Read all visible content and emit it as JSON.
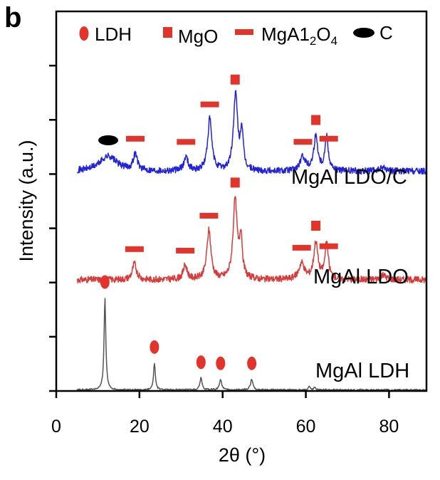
{
  "chart_data": {
    "type": "line",
    "panel_label": "b",
    "xlabel": "2θ (°)",
    "ylabel": "Intensity (a.u.)",
    "xlim": [
      0,
      89
    ],
    "x_ticks": [
      0,
      20,
      40,
      60,
      80
    ],
    "y_tick_count": 7,
    "y_tick_labels": false,
    "legend": {
      "placement": "top",
      "items": [
        {
          "marker": "ldh",
          "label": "LDH",
          "color": "#e2342b"
        },
        {
          "marker": "mgo",
          "label": "MgO",
          "color": "#e2342b"
        },
        {
          "marker": "spinel",
          "label": "MgA1₂O₄",
          "color": "#e2342b",
          "label_base": "MgA1",
          "label_sub1": "2",
          "label_mid": "O",
          "label_sub2": "4"
        },
        {
          "marker": "carbon",
          "label": "C",
          "color": "#000000"
        }
      ]
    },
    "series": [
      {
        "name": "MgAl LDO/C",
        "color": "#2222dd",
        "baseline": 4.05,
        "noise": 0.06,
        "peaks": [
          {
            "x": 12.5,
            "h": 0.28,
            "w": 2.5
          },
          {
            "x": 19.0,
            "h": 0.3,
            "w": 0.6
          },
          {
            "x": 31.2,
            "h": 0.26,
            "w": 0.6
          },
          {
            "x": 36.9,
            "h": 0.95,
            "w": 0.6
          },
          {
            "x": 43.1,
            "h": 1.4,
            "w": 0.6
          },
          {
            "x": 44.6,
            "h": 0.7,
            "w": 0.4
          },
          {
            "x": 59.3,
            "h": 0.25,
            "w": 0.8
          },
          {
            "x": 62.4,
            "h": 0.63,
            "w": 0.6
          },
          {
            "x": 65.0,
            "h": 0.62,
            "w": 0.5
          },
          {
            "x": 78.6,
            "h": 0.07,
            "w": 0.9
          }
        ],
        "markers": [
          {
            "type": "carbon",
            "x": 12.5
          },
          {
            "type": "spinel",
            "x": 19.0
          },
          {
            "type": "spinel",
            "x": 31.2
          },
          {
            "type": "spinel",
            "x": 36.9
          },
          {
            "type": "mgo",
            "x": 43.0
          },
          {
            "type": "spinel",
            "x": 59.3
          },
          {
            "type": "mgo",
            "x": 62.4
          },
          {
            "type": "spinel",
            "x": 65.5
          }
        ]
      },
      {
        "name": "MgAl LDO",
        "color": "#d93a3a",
        "baseline": 2.05,
        "noise": 0.06,
        "peaks": [
          {
            "x": 18.8,
            "h": 0.3,
            "w": 0.6
          },
          {
            "x": 31.0,
            "h": 0.26,
            "w": 0.6
          },
          {
            "x": 36.7,
            "h": 0.9,
            "w": 0.6
          },
          {
            "x": 43.0,
            "h": 1.45,
            "w": 0.6
          },
          {
            "x": 44.4,
            "h": 0.75,
            "w": 0.4
          },
          {
            "x": 59.0,
            "h": 0.3,
            "w": 0.8
          },
          {
            "x": 62.4,
            "h": 0.68,
            "w": 0.6
          },
          {
            "x": 65.0,
            "h": 0.65,
            "w": 0.5
          },
          {
            "x": 78.6,
            "h": 0.08,
            "w": 0.9
          }
        ],
        "markers": [
          {
            "type": "spinel",
            "x": 18.8
          },
          {
            "type": "spinel",
            "x": 31.0
          },
          {
            "type": "spinel",
            "x": 36.7
          },
          {
            "type": "mgo",
            "x": 43.0
          },
          {
            "type": "spinel",
            "x": 59.0
          },
          {
            "type": "mgo",
            "x": 62.4
          },
          {
            "type": "spinel",
            "x": 65.5
          }
        ]
      },
      {
        "name": "MgAl LDH",
        "color": "#555555",
        "baseline": 0.02,
        "noise": 0.015,
        "peaks": [
          {
            "x": 11.7,
            "h": 1.7,
            "w": 0.25
          },
          {
            "x": 23.6,
            "h": 0.5,
            "w": 0.25
          },
          {
            "x": 34.8,
            "h": 0.22,
            "w": 0.3
          },
          {
            "x": 39.5,
            "h": 0.2,
            "w": 0.3
          },
          {
            "x": 47.0,
            "h": 0.2,
            "w": 0.35
          },
          {
            "x": 60.8,
            "h": 0.06,
            "w": 0.3
          },
          {
            "x": 62.2,
            "h": 0.05,
            "w": 0.3
          }
        ],
        "markers": [
          {
            "type": "ldh",
            "x": 11.7
          },
          {
            "type": "ldh",
            "x": 23.6
          },
          {
            "type": "ldh",
            "x": 34.8
          },
          {
            "type": "ldh",
            "x": 39.5
          },
          {
            "type": "ldh",
            "x": 47.0
          }
        ]
      }
    ]
  }
}
